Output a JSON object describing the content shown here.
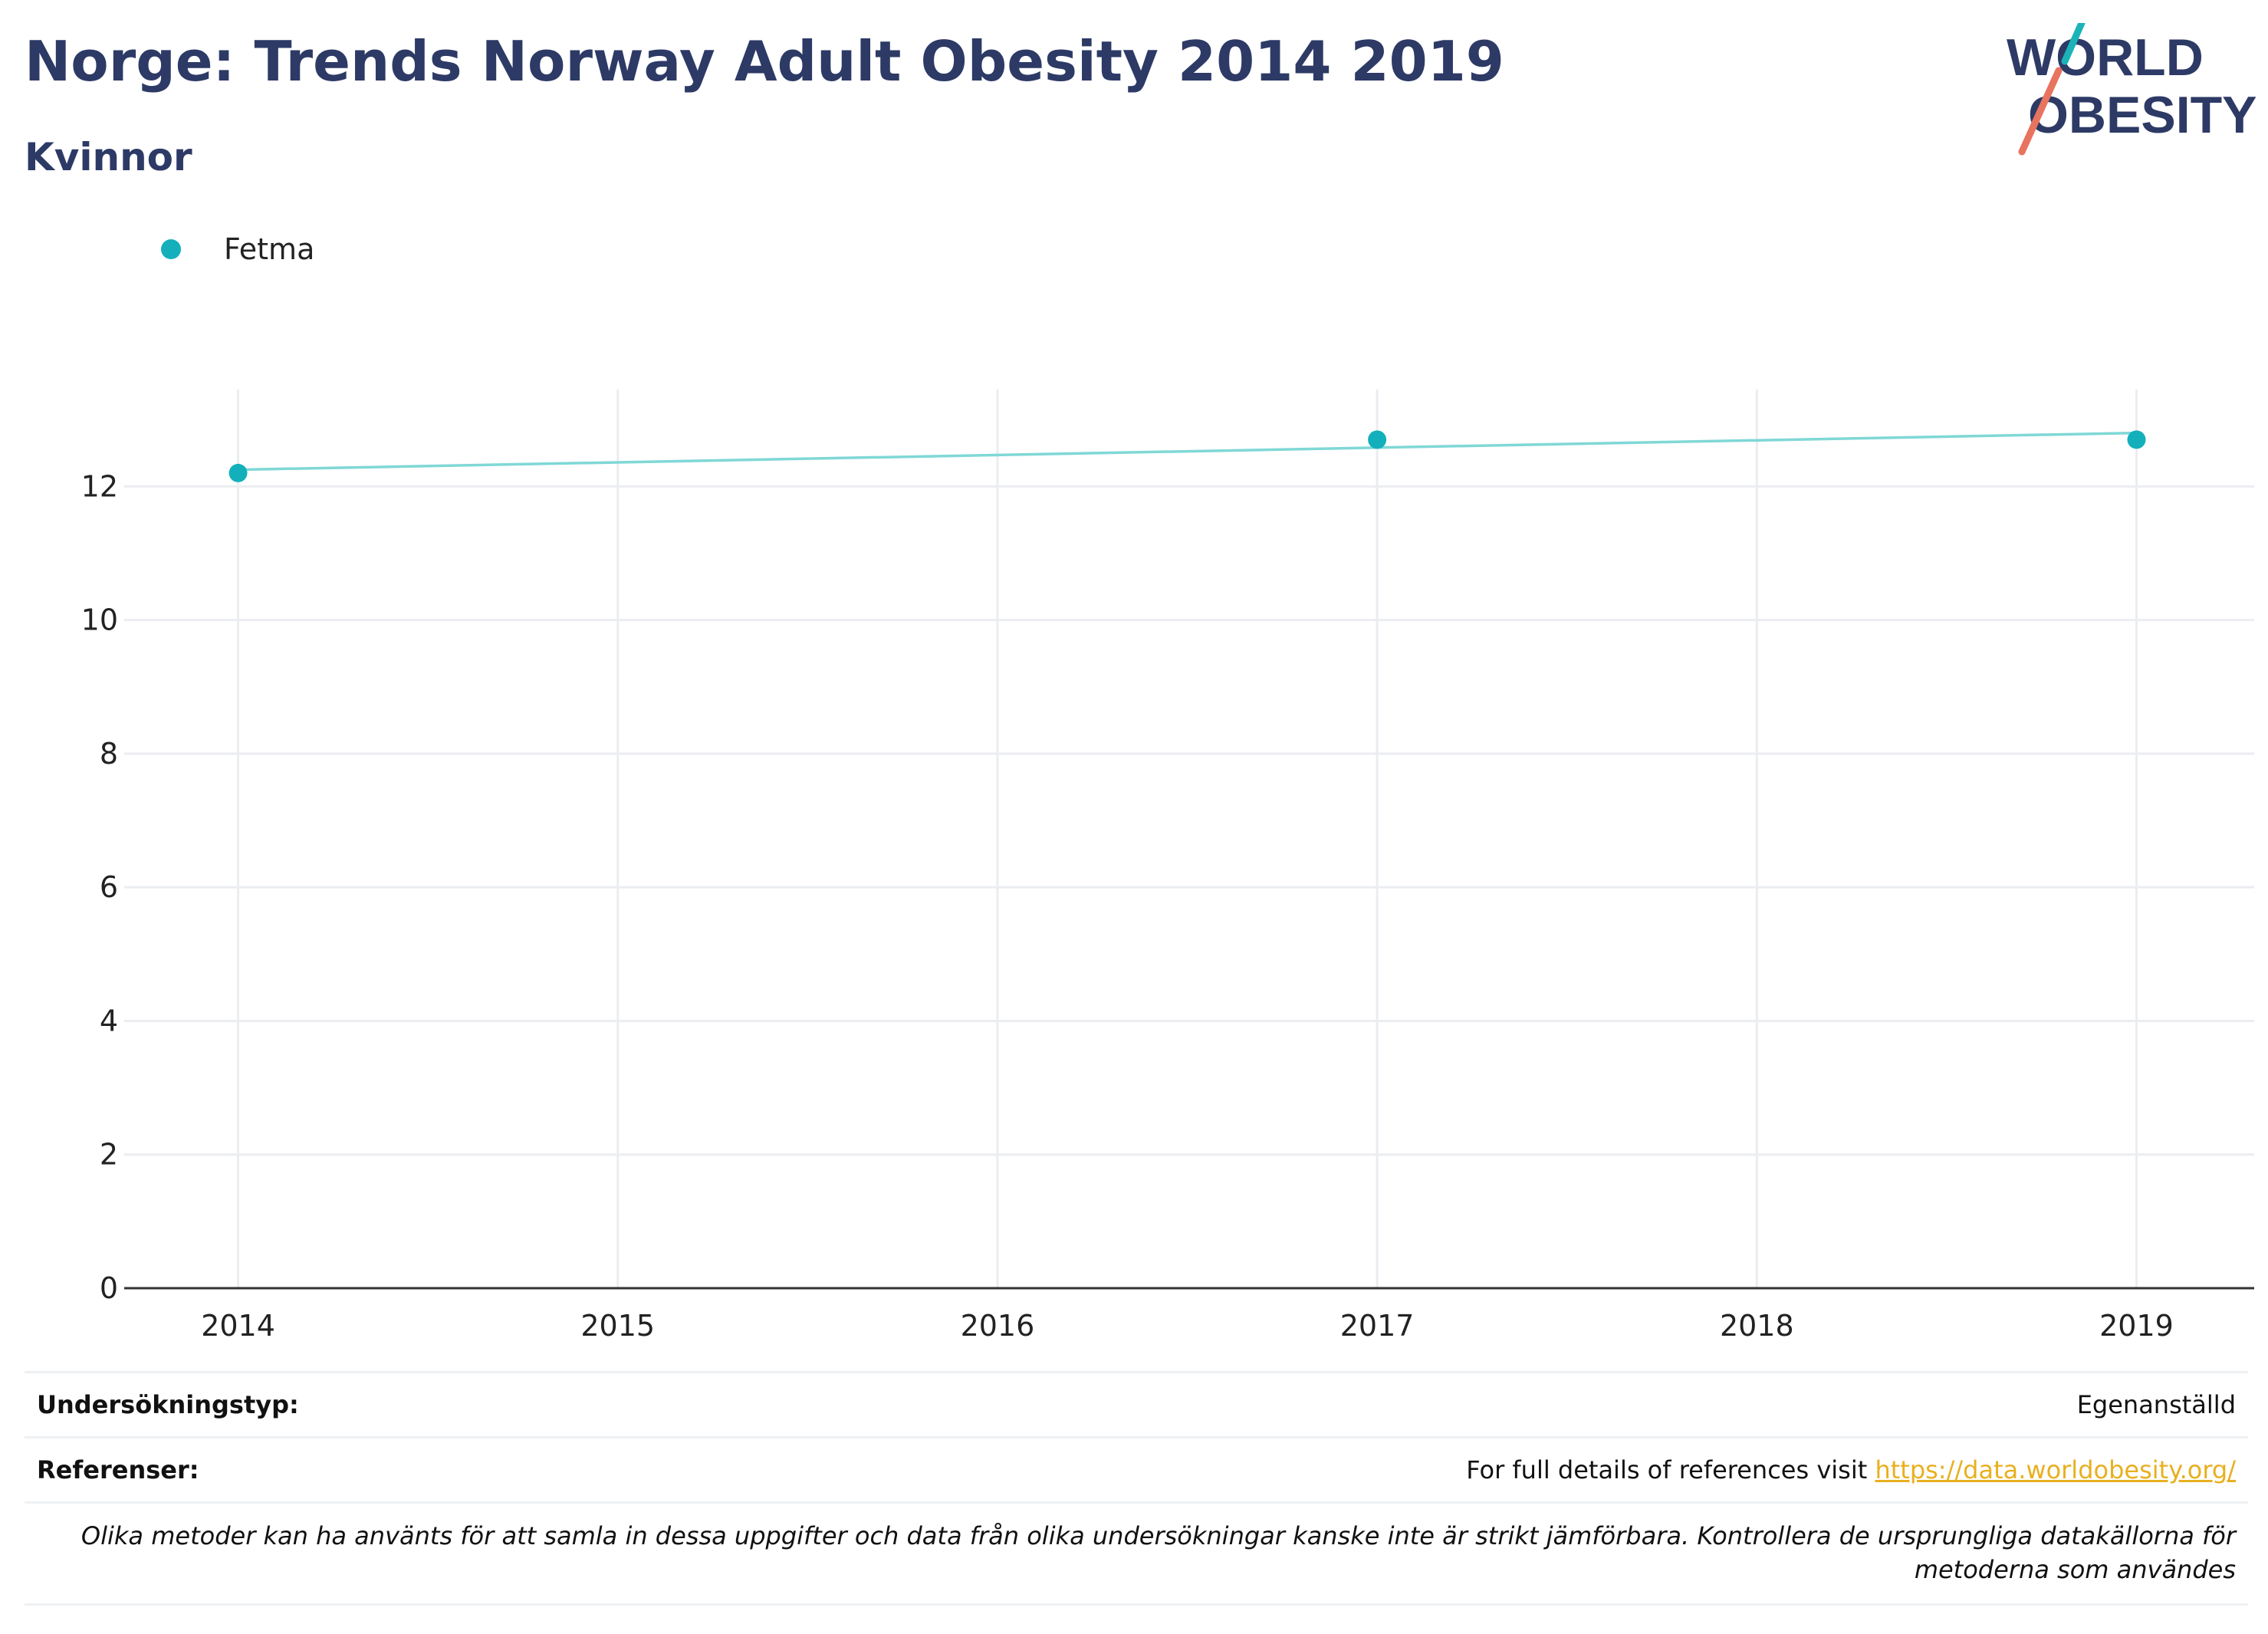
{
  "header": {
    "title": "Norge: Trends Norway Adult Obesity 2014 2019",
    "subtitle": "Kvinnor"
  },
  "logo": {
    "line1": "WORLD",
    "line2": "OBESITY",
    "color_text": "#2d3a66",
    "color_teal": "#1ab3b8",
    "color_coral": "#e8735f"
  },
  "legend": {
    "items": [
      {
        "label": "Fetma",
        "color": "#13b0bc"
      }
    ]
  },
  "chart_data": {
    "type": "line",
    "x": [
      2014,
      2017,
      2019
    ],
    "series": [
      {
        "name": "Fetma",
        "values": [
          12.2,
          12.7,
          12.7
        ],
        "color": "#13b0bc",
        "trend": {
          "x": [
            2014,
            2019
          ],
          "y": [
            12.25,
            12.8
          ],
          "color": "#7fd8d6"
        }
      }
    ],
    "x_ticks": [
      2014,
      2015,
      2016,
      2017,
      2018,
      2019
    ],
    "y_ticks": [
      0,
      2,
      4,
      6,
      8,
      10,
      12
    ],
    "xlim": [
      2013.7,
      2019.31
    ],
    "ylim": [
      0,
      13.45
    ],
    "grid": true
  },
  "info": {
    "survey_type_label": "Undersökningstyp:",
    "survey_type_value": "Egenanställd",
    "references_label": "Referenser:",
    "references_text": "For full details of references visit ",
    "references_link": "https://data.worldobesity.org/",
    "note": "Olika metoder kan ha använts för att samla in dessa uppgifter och data från olika undersökningar kanske inte är strikt jämförbara. Kontrollera de ursprungliga datakällorna för metoderna som användes"
  }
}
